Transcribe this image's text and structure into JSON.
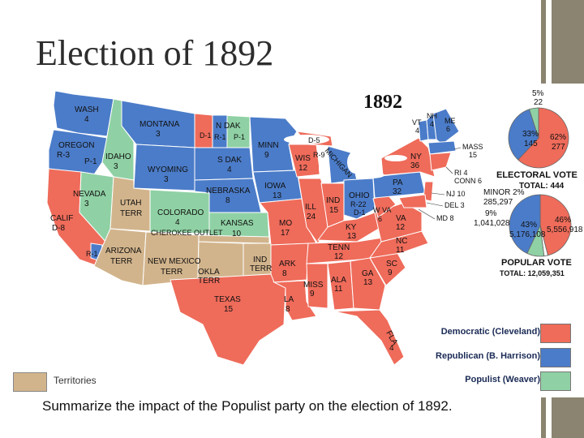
{
  "slide": {
    "title": "Election of 1892",
    "question": "Summarize the impact of the Populist party on the election of 1892."
  },
  "map": {
    "year": "1892",
    "colors": {
      "democratic": "#ef6b5a",
      "republican": "#4b7cc9",
      "populist": "#8fd1a4",
      "territory": "#d2b48c"
    },
    "labels": {
      "wash": "WASH",
      "wash_ev": "4",
      "oregon": "OREGON",
      "oregon_ev": "R-3",
      "oregon_p": "P-1",
      "calif": "CALIF",
      "calif_ev": "D-8",
      "calif_r": "R-1",
      "nevada": "NEVADA",
      "nevada_ev": "3",
      "idaho": "IDAHO",
      "idaho_ev": "3",
      "montana": "MONTANA",
      "montana_ev": "3",
      "wyoming": "WYOMING",
      "wyoming_ev": "3",
      "utah": "UTAH",
      "utah_terr": "TERR",
      "colorado": "COLORADO",
      "colorado_ev": "4",
      "arizona": "ARIZONA",
      "arizona_terr": "TERR",
      "newmexico": "NEW MEXICO",
      "newmexico_terr": "TERR",
      "ndak": "N DAK",
      "ndak_d": "D-1",
      "ndak_r": "R-1",
      "ndak_p": "P-1",
      "sdak": "S DAK",
      "sdak_ev": "4",
      "nebraska": "NEBRASKA",
      "nebraska_ev": "8",
      "kansas": "KANSAS",
      "kansas_ev": "10",
      "cherokee": "CHEROKEE OUTLET",
      "okla": "OKLA",
      "okla_terr": "TERR",
      "ind_terr": "IND",
      "ind_terr2": "TERR",
      "texas": "TEXAS",
      "texas_ev": "15",
      "minn": "MINN",
      "minn_ev": "9",
      "iowa": "IOWA",
      "iowa_ev": "13",
      "mo": "MO",
      "mo_ev": "17",
      "ark": "ARK",
      "ark_ev": "8",
      "la": "LA",
      "la_ev": "8",
      "wis": "WIS",
      "wis_ev": "12",
      "mich_d": "D-5",
      "mich_r": "R-9",
      "mich": "MICHIGAN",
      "ill": "ILL",
      "ill_ev": "24",
      "ind": "IND",
      "ind_ev": "15",
      "ohio": "OHIO",
      "ohio_r": "R-22",
      "ohio_d": "D-1",
      "ky": "KY",
      "ky_ev": "13",
      "tenn": "TENN",
      "tenn_ev": "12",
      "miss": "MISS",
      "miss_ev": "9",
      "ala": "ALA",
      "ala_ev": "11",
      "ga": "GA",
      "ga_ev": "13",
      "fla": "FLA",
      "fla_ev": "4",
      "sc": "SC",
      "sc_ev": "9",
      "nc": "NC",
      "nc_ev": "11",
      "va": "VA",
      "va_ev": "12",
      "wva": "W VA",
      "wva_ev": "6",
      "pa": "PA",
      "pa_ev": "32",
      "ny": "NY",
      "ny_ev": "36",
      "vt": "VT",
      "vt_ev": "4",
      "nh": "NH",
      "nh_ev": "4",
      "me": "ME",
      "me_ev": "6",
      "mass": "MASS",
      "mass_ev": "15",
      "ri": "RI 4",
      "conn": "CONN 6",
      "nj": "NJ 10",
      "del": "DEL 3",
      "md": "MD 8"
    }
  },
  "electoral_vote": {
    "title": "ELECTORAL VOTE",
    "total": "TOTAL: 444",
    "democratic_pct": "62%",
    "democratic_votes": "277",
    "republican_pct": "33%",
    "republican_votes": "145",
    "populist_pct": "5%",
    "populist_votes": "22",
    "slices": [
      {
        "party": "democratic",
        "fraction": 0.62
      },
      {
        "party": "republican",
        "fraction": 0.33
      },
      {
        "party": "populist",
        "fraction": 0.05
      }
    ]
  },
  "popular_vote": {
    "title": "POPULAR VOTE",
    "total": "TOTAL: 12,059,351",
    "minor_label": "MINOR 2%",
    "minor_votes": "285,297",
    "populist_pct": "9%",
    "populist_votes": "1,041,028",
    "republican_pct": "43%",
    "republican_votes": "5,176,108",
    "democratic_pct": "46%",
    "democratic_votes": "5,556,918",
    "slices": [
      {
        "party": "democratic",
        "fraction": 0.46
      },
      {
        "party": "minor",
        "fraction": 0.02
      },
      {
        "party": "populist",
        "fraction": 0.09
      },
      {
        "party": "republican",
        "fraction": 0.43
      }
    ]
  },
  "legend": {
    "democratic": "Democratic (Cleveland)",
    "republican": "Republican (B. Harrison)",
    "populist": "Populist (Weaver)",
    "territories": "Territories"
  }
}
